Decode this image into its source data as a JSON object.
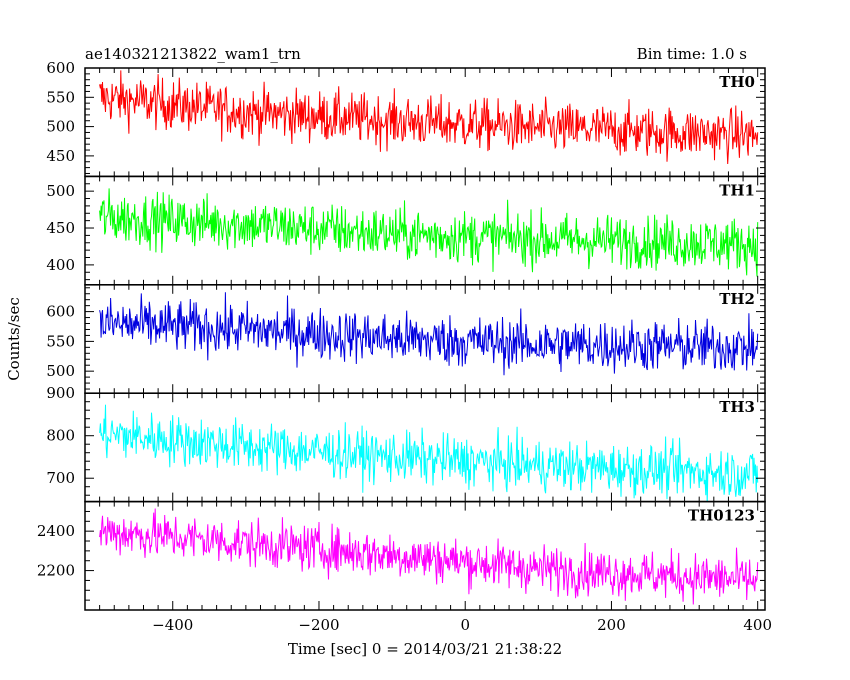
{
  "header": {
    "title": "ae140321213822_wam1_trn",
    "bin_time": "Bin time: 1.0 s"
  },
  "axes": {
    "ylabel": "Counts/sec",
    "xlabel": "Time [sec] 0 = 2014/03/21 21:38:22"
  },
  "chart_data": {
    "type": "line",
    "title": "ae140321213822_wam1_trn",
    "subtitle": "Bin time: 1.0 s",
    "xlabel": "Time [sec] 0 = 2014/03/21 21:38:22",
    "ylabel": "Counts/sec",
    "xlim": [
      -520,
      410
    ],
    "x_ticks": [
      -400,
      -200,
      0,
      200,
      400
    ],
    "x_start": -500,
    "x_end": 400,
    "bin_seconds": 1.0,
    "grid": false,
    "panels": [
      {
        "name": "TH0",
        "color": "#ff0000",
        "ylim": [
          415,
          600
        ],
        "y_ticks": [
          450,
          500,
          550,
          600
        ],
        "trend": [
          [
            -500,
            550
          ],
          [
            -300,
            525
          ],
          [
            -100,
            510
          ],
          [
            100,
            498
          ],
          [
            400,
            485
          ]
        ],
        "noise_sd": 22
      },
      {
        "name": "TH1",
        "color": "#00ff00",
        "ylim": [
          373,
          520
        ],
        "y_ticks": [
          400,
          450,
          500
        ],
        "trend": [
          [
            -500,
            465
          ],
          [
            -300,
            455
          ],
          [
            -100,
            442
          ],
          [
            100,
            435
          ],
          [
            400,
            428
          ]
        ],
        "noise_sd": 18
      },
      {
        "name": "TH2",
        "color": "#0000e0",
        "ylim": [
          463,
          645
        ],
        "y_ticks": [
          500,
          550,
          600
        ],
        "trend": [
          [
            -500,
            580
          ],
          [
            -300,
            570
          ],
          [
            -100,
            555
          ],
          [
            100,
            545
          ],
          [
            400,
            540
          ]
        ],
        "noise_sd": 22
      },
      {
        "name": "TH3",
        "color": "#00ffff",
        "ylim": [
          645,
          900
        ],
        "y_ticks": [
          700,
          800,
          900
        ],
        "trend": [
          [
            -500,
            805
          ],
          [
            -300,
            775
          ],
          [
            -100,
            750
          ],
          [
            100,
            730
          ],
          [
            400,
            710
          ]
        ],
        "noise_sd": 30
      },
      {
        "name": "TH0123",
        "color": "#ff00ff",
        "ylim": [
          2000,
          2550
        ],
        "y_ticks": [
          2200,
          2400
        ],
        "trend": [
          [
            -500,
            2400
          ],
          [
            -300,
            2340
          ],
          [
            -100,
            2280
          ],
          [
            100,
            2210
          ],
          [
            400,
            2150
          ]
        ],
        "noise_sd": 60
      }
    ]
  }
}
